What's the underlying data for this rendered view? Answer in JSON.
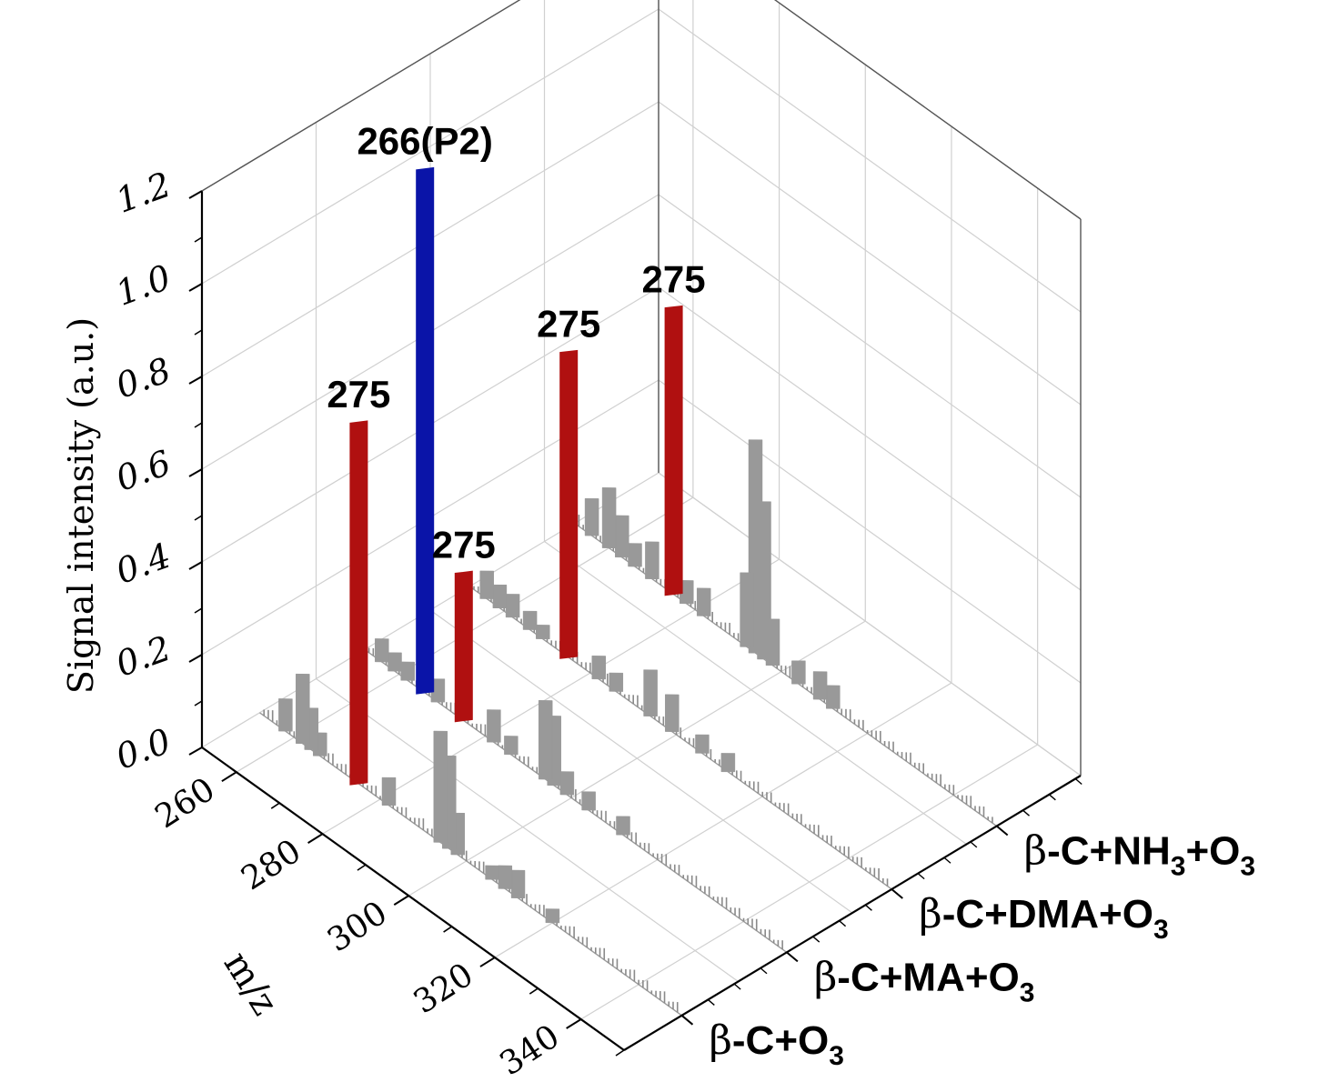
{
  "chart_data": {
    "type": "bar",
    "subtype": "3d-waterfall-spectra",
    "xlabel": "m/z",
    "ylabel": "Signal intensity (a.u.)",
    "z_ticks": [
      "0.0",
      "0.2",
      "0.4",
      "0.6",
      "0.8",
      "1.0",
      "1.2"
    ],
    "zlim": [
      0,
      1.2
    ],
    "x_ticks": [
      "260",
      "280",
      "300",
      "320",
      "340"
    ],
    "xlim": [
      252,
      350
    ],
    "grid": true,
    "legend": "none",
    "colors": {
      "background_bar": "#999999",
      "highlight_275": "#b01010",
      "highlight_266": "#0a14a8",
      "axes": "#000000",
      "grid": "#d0d0d0"
    },
    "series": [
      {
        "name": "β-C+O3",
        "label_main": "β-C+O",
        "label_sub": "3",
        "label_tail": "",
        "peaks": [
          {
            "mz": 258,
            "value": 0.07
          },
          {
            "mz": 262,
            "value": 0.15
          },
          {
            "mz": 264,
            "value": 0.09
          },
          {
            "mz": 266,
            "value": 0.05
          },
          {
            "mz": 275,
            "value": 0.78,
            "highlight": "275",
            "label": "275"
          },
          {
            "mz": 282,
            "value": 0.06
          },
          {
            "mz": 294,
            "value": 0.24
          },
          {
            "mz": 296,
            "value": 0.2
          },
          {
            "mz": 298,
            "value": 0.09
          },
          {
            "mz": 306,
            "value": 0.03
          },
          {
            "mz": 309,
            "value": 0.05
          },
          {
            "mz": 312,
            "value": 0.06
          },
          {
            "mz": 320,
            "value": 0.03
          }
        ]
      },
      {
        "name": "β-C+MA+O3",
        "label_main": "β-C+MA+O",
        "label_sub": "3",
        "label_tail": "",
        "peaks": [
          {
            "mz": 256,
            "value": 0.05
          },
          {
            "mz": 259,
            "value": 0.04
          },
          {
            "mz": 262,
            "value": 0.04
          },
          {
            "mz": 266,
            "value": 1.13,
            "highlight": "266",
            "label": "266(P2)"
          },
          {
            "mz": 269,
            "value": 0.05
          },
          {
            "mz": 275,
            "value": 0.32,
            "highlight": "275",
            "label": "275"
          },
          {
            "mz": 282,
            "value": 0.07
          },
          {
            "mz": 286,
            "value": 0.04
          },
          {
            "mz": 294,
            "value": 0.17
          },
          {
            "mz": 296,
            "value": 0.15
          },
          {
            "mz": 299,
            "value": 0.05
          },
          {
            "mz": 304,
            "value": 0.04
          },
          {
            "mz": 312,
            "value": 0.04
          }
        ]
      },
      {
        "name": "β-C+DMA+O3",
        "label_main": "β-C+DMA+O",
        "label_sub": "3",
        "label_tail": "",
        "peaks": [
          {
            "mz": 256,
            "value": 0.06
          },
          {
            "mz": 259,
            "value": 0.05
          },
          {
            "mz": 262,
            "value": 0.05
          },
          {
            "mz": 266,
            "value": 0.04
          },
          {
            "mz": 269,
            "value": 0.03
          },
          {
            "mz": 275,
            "value": 0.66,
            "highlight": "275",
            "label": "275"
          },
          {
            "mz": 282,
            "value": 0.05
          },
          {
            "mz": 286,
            "value": 0.04
          },
          {
            "mz": 294,
            "value": 0.1
          },
          {
            "mz": 299,
            "value": 0.08
          },
          {
            "mz": 306,
            "value": 0.04
          },
          {
            "mz": 312,
            "value": 0.04
          }
        ]
      },
      {
        "name": "β-C+NH3+O3",
        "label_main": "β-C+NH",
        "label_sub": "3",
        "label_tail": "+O",
        "label_sub2": "3",
        "peaks": [
          {
            "mz": 256,
            "value": 0.08
          },
          {
            "mz": 260,
            "value": 0.13
          },
          {
            "mz": 263,
            "value": 0.09
          },
          {
            "mz": 266,
            "value": 0.05
          },
          {
            "mz": 270,
            "value": 0.08
          },
          {
            "mz": 275,
            "value": 0.62,
            "highlight": "275",
            "label": "275"
          },
          {
            "mz": 278,
            "value": 0.05
          },
          {
            "mz": 282,
            "value": 0.06
          },
          {
            "mz": 292,
            "value": 0.16
          },
          {
            "mz": 294,
            "value": 0.46
          },
          {
            "mz": 296,
            "value": 0.34
          },
          {
            "mz": 298,
            "value": 0.1
          },
          {
            "mz": 304,
            "value": 0.05
          },
          {
            "mz": 309,
            "value": 0.06
          },
          {
            "mz": 312,
            "value": 0.05
          }
        ]
      }
    ]
  }
}
